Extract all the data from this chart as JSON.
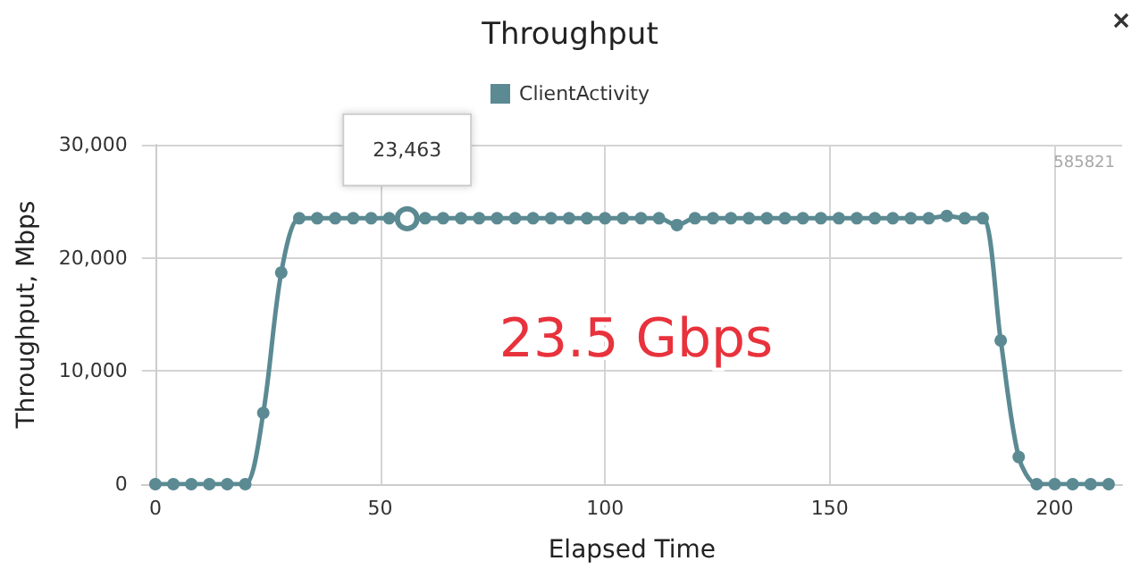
{
  "chart_data": {
    "type": "line",
    "title": "Throughput",
    "xlabel": "Elapsed Time",
    "ylabel": "Throughput, Mbps",
    "x": [
      0,
      4,
      8,
      12,
      16,
      20,
      24,
      28,
      32,
      36,
      40,
      44,
      48,
      52,
      56,
      60,
      64,
      68,
      72,
      76,
      80,
      84,
      88,
      92,
      96,
      100,
      104,
      108,
      112,
      116,
      120,
      124,
      128,
      132,
      136,
      140,
      144,
      148,
      152,
      156,
      160,
      164,
      168,
      172,
      176,
      180,
      184,
      188,
      192,
      196,
      200,
      204,
      208,
      212
    ],
    "series": [
      {
        "name": "ClientActivity",
        "color": "#5b8a93",
        "values": [
          0,
          0,
          0,
          0,
          0,
          0,
          6300,
          18700,
          23500,
          23500,
          23500,
          23500,
          23500,
          23500,
          23463,
          23500,
          23500,
          23500,
          23500,
          23500,
          23500,
          23500,
          23500,
          23500,
          23500,
          23500,
          23500,
          23500,
          23500,
          22900,
          23500,
          23500,
          23500,
          23500,
          23500,
          23500,
          23500,
          23500,
          23500,
          23500,
          23500,
          23500,
          23500,
          23500,
          23700,
          23500,
          23500,
          12700,
          2400,
          0,
          0,
          0,
          0,
          0
        ]
      }
    ],
    "xlim": [
      -3,
      215
    ],
    "xticks": [
      0,
      50,
      100,
      150,
      200
    ],
    "ylim": [
      0,
      30000
    ],
    "yticks": [
      {
        "value": 0,
        "label": "0"
      },
      {
        "value": 10000,
        "label": "10,000"
      },
      {
        "value": 20000,
        "label": "20,000"
      },
      {
        "value": 30000,
        "label": "30,000"
      }
    ],
    "annotations": [
      {
        "text": "23,463",
        "x": 56,
        "y": 23463
      },
      "23.5 Gbps",
      "585821"
    ],
    "grid": true,
    "legend": "top",
    "marker": "circle",
    "line_style": "solid"
  }
}
